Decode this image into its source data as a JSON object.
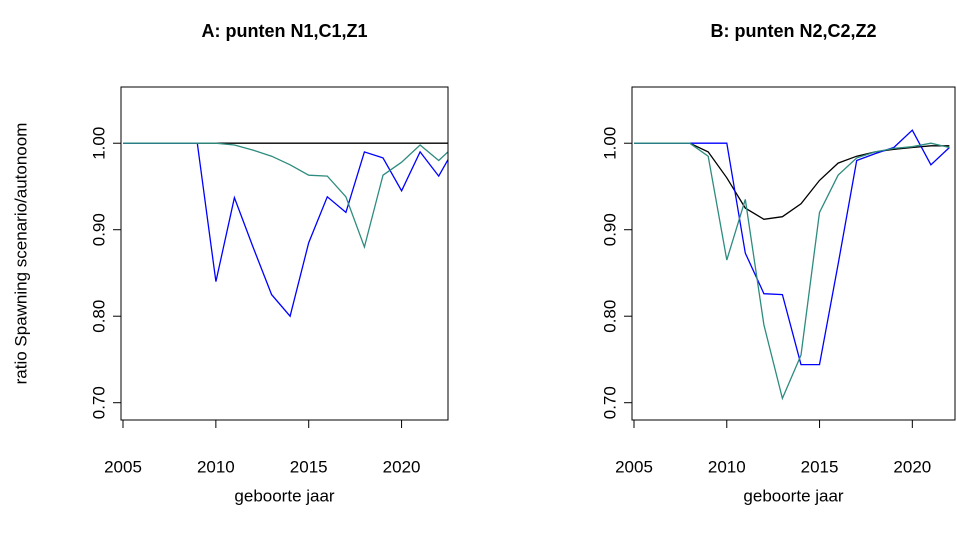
{
  "chart_data": [
    {
      "type": "line",
      "title": "A: punten N1,C1,Z1",
      "xlabel": "geboorte jaar",
      "ylabel": "ratio Spawning scenario/autonoom",
      "x": [
        2005,
        2006,
        2007,
        2008,
        2009,
        2010,
        2011,
        2012,
        2013,
        2014,
        2015,
        2016,
        2017,
        2018,
        2019,
        2020,
        2021,
        2022,
        2023
      ],
      "series": [
        {
          "color": "#000000",
          "values": [
            1,
            1,
            1,
            1,
            1,
            1,
            1,
            1,
            1,
            1,
            1,
            1,
            1,
            1,
            1,
            1,
            1,
            1,
            1
          ]
        },
        {
          "color": "#0000ff",
          "values": [
            1,
            1,
            1,
            1,
            1,
            0.84,
            0.937,
            0.88,
            0.825,
            0.8,
            0.885,
            0.938,
            0.92,
            0.99,
            0.983,
            0.945,
            0.99,
            0.962,
            1.0
          ]
        },
        {
          "color": "#2e8b7f",
          "values": [
            1,
            1,
            1,
            1,
            1,
            1,
            0.998,
            0.992,
            0.985,
            0.975,
            0.963,
            0.962,
            0.938,
            0.88,
            0.963,
            0.978,
            0.998,
            0.98,
            1.0
          ]
        }
      ],
      "xlim": [
        2005,
        2022.5
      ],
      "xticks": [
        2005,
        2010,
        2015,
        2020
      ],
      "ylim": [
        0.68,
        1.065
      ],
      "yticks": [
        {
          "value": 0.7,
          "label": "0.70"
        },
        {
          "value": 0.8,
          "label": "0.80"
        },
        {
          "value": 0.9,
          "label": "0.90"
        },
        {
          "value": 1,
          "label": "1.00"
        }
      ]
    },
    {
      "type": "line",
      "title": "B: punten N2,C2,Z2",
      "xlabel": "geboorte jaar",
      "x": [
        2005,
        2006,
        2007,
        2008,
        2009,
        2010,
        2011,
        2012,
        2013,
        2014,
        2015,
        2016,
        2017,
        2018,
        2019,
        2020,
        2021,
        2022
      ],
      "series": [
        {
          "color": "#000000",
          "values": [
            1,
            1,
            1,
            1,
            0.99,
            0.96,
            0.925,
            0.912,
            0.915,
            0.93,
            0.957,
            0.977,
            0.985,
            0.99,
            0.993,
            0.995,
            0.997,
            0.997
          ]
        },
        {
          "color": "#0000ff",
          "values": [
            1,
            1,
            1,
            1,
            1,
            1,
            0.873,
            0.826,
            0.825,
            0.744,
            0.744,
            0.86,
            0.98,
            0.988,
            0.995,
            1.015,
            0.975,
            0.995
          ]
        },
        {
          "color": "#2e8b7f",
          "values": [
            1,
            1,
            1,
            1,
            0.985,
            0.865,
            0.935,
            0.79,
            0.705,
            0.755,
            0.92,
            0.963,
            0.983,
            0.99,
            0.994,
            0.996,
            1.0,
            0.995
          ]
        }
      ],
      "xlim": [
        2005,
        2022.3
      ],
      "xticks": [
        2005,
        2010,
        2015,
        2020
      ],
      "ylim": [
        0.68,
        1.065
      ],
      "yticks": [
        {
          "value": 0.7,
          "label": "0.70"
        },
        {
          "value": 0.8,
          "label": "0.80"
        },
        {
          "value": 0.9,
          "label": "0.90"
        },
        {
          "value": 1,
          "label": "1.00"
        }
      ]
    }
  ]
}
